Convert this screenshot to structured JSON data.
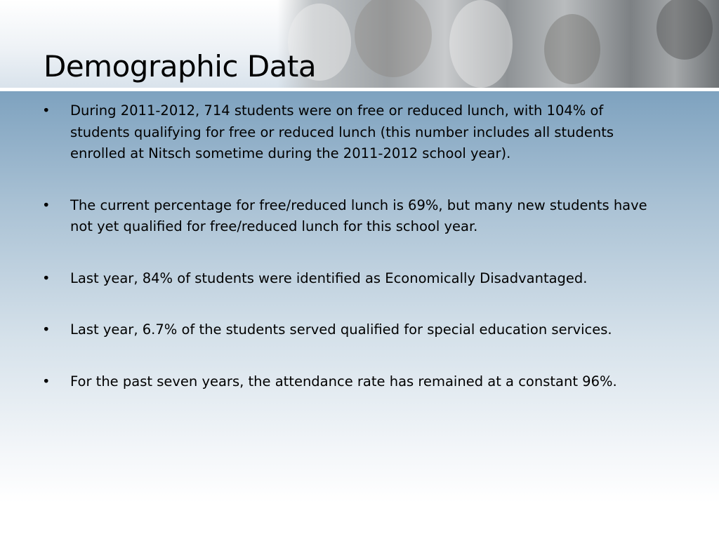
{
  "slide": {
    "title": "Demographic Data",
    "bullets": [
      "During 2011-2012, 714 students were on free or reduced lunch, with 104% of students qualifying for free or reduced lunch (this number includes all students enrolled at Nitsch sometime during the 2011-2012 school year).",
      "The current percentage for free/reduced lunch is 69%, but many new students have not yet qualified for free/reduced lunch for this school year.",
      "Last year, 84% of students were identified as Economically Disadvantaged.",
      "Last year, 6.7% of the students served qualified for special education services.",
      "For the past seven years, the attendance rate has remained at a constant 96%."
    ],
    "bullet_glyph": "•"
  },
  "colors": {
    "body_top": "#7ea2bf",
    "body_bottom": "#ffffff"
  }
}
